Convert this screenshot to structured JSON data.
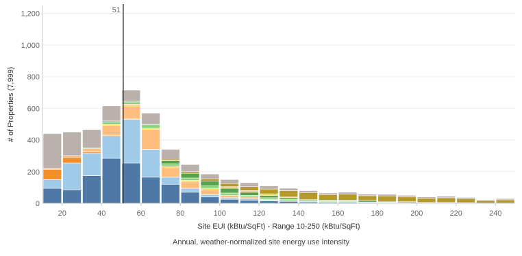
{
  "chart_data": {
    "type": "bar",
    "stacked": true,
    "xlabel": "Site EUI (kBtu/SqFt) - Range 10-250 (kBtu/SqFt)",
    "ylabel": "# of Properties (7,999)",
    "caption": "Annual, weather-normalized site energy use intensity",
    "reference_line": {
      "x": 51,
      "label": "51",
      "color": "#333333"
    },
    "xlim": [
      10,
      250
    ],
    "ylim": [
      0,
      1250
    ],
    "bin_width": 10,
    "x_ticks": [
      20,
      40,
      60,
      80,
      100,
      120,
      140,
      160,
      180,
      200,
      220,
      240
    ],
    "x_tick_labels": [
      "20",
      "40",
      "60",
      "80",
      "100",
      "120",
      "140",
      "160",
      "180",
      "200",
      "220",
      "240"
    ],
    "y_ticks": [
      0,
      200,
      400,
      600,
      800,
      1000,
      1200
    ],
    "y_tick_labels": [
      "0",
      "200",
      "400",
      "600",
      "800",
      "1,000",
      "1,200"
    ],
    "grid": "horizontal",
    "bins": [
      {
        "x": 15,
        "segments": [
          [
            "#4e79a7",
            95
          ],
          [
            "#a0cbe8",
            55
          ],
          [
            "#f28e2b",
            65
          ],
          [
            "#ffbe7d",
            5
          ],
          [
            "#bab0ac",
            220
          ]
        ]
      },
      {
        "x": 25,
        "segments": [
          [
            "#4e79a7",
            85
          ],
          [
            "#a0cbe8",
            170
          ],
          [
            "#f28e2b",
            35
          ],
          [
            "#ffbe7d",
            10
          ],
          [
            "#bab0ac",
            150
          ]
        ]
      },
      {
        "x": 35,
        "segments": [
          [
            "#4e79a7",
            175
          ],
          [
            "#a0cbe8",
            140
          ],
          [
            "#f28e2b",
            10
          ],
          [
            "#ffbe7d",
            20
          ],
          [
            "#8cd17d",
            5
          ],
          [
            "#bab0ac",
            115
          ]
        ]
      },
      {
        "x": 45,
        "segments": [
          [
            "#4e79a7",
            285
          ],
          [
            "#a0cbe8",
            140
          ],
          [
            "#f28e2b",
            5
          ],
          [
            "#ffbe7d",
            60
          ],
          [
            "#f1ce63",
            10
          ],
          [
            "#8cd17d",
            15
          ],
          [
            "#59a14f",
            5
          ],
          [
            "#bab0ac",
            95
          ]
        ]
      },
      {
        "x": 55,
        "segments": [
          [
            "#4e79a7",
            255
          ],
          [
            "#a0cbe8",
            275
          ],
          [
            "#f28e2b",
            5
          ],
          [
            "#ffbe7d",
            80
          ],
          [
            "#f1ce63",
            10
          ],
          [
            "#8cd17d",
            15
          ],
          [
            "#59a14f",
            5
          ],
          [
            "#bab0ac",
            70
          ]
        ]
      },
      {
        "x": 65,
        "segments": [
          [
            "#4e79a7",
            165
          ],
          [
            "#a0cbe8",
            175
          ],
          [
            "#ffbe7d",
            125
          ],
          [
            "#f1ce63",
            10
          ],
          [
            "#8cd17d",
            20
          ],
          [
            "#59a14f",
            5
          ],
          [
            "#bab0ac",
            70
          ]
        ]
      },
      {
        "x": 75,
        "segments": [
          [
            "#4e79a7",
            120
          ],
          [
            "#a0cbe8",
            45
          ],
          [
            "#ffbe7d",
            60
          ],
          [
            "#f1ce63",
            10
          ],
          [
            "#8cd17d",
            15
          ],
          [
            "#59a14f",
            20
          ],
          [
            "#b6992d",
            10
          ],
          [
            "#bab0ac",
            60
          ]
        ]
      },
      {
        "x": 85,
        "segments": [
          [
            "#4e79a7",
            70
          ],
          [
            "#a0cbe8",
            25
          ],
          [
            "#ffbe7d",
            40
          ],
          [
            "#f1ce63",
            10
          ],
          [
            "#8cd17d",
            15
          ],
          [
            "#59a14f",
            30
          ],
          [
            "#b6992d",
            10
          ],
          [
            "#bab0ac",
            45
          ]
        ]
      },
      {
        "x": 95,
        "segments": [
          [
            "#4e79a7",
            40
          ],
          [
            "#a0cbe8",
            15
          ],
          [
            "#ffbe7d",
            30
          ],
          [
            "#f1ce63",
            10
          ],
          [
            "#8cd17d",
            15
          ],
          [
            "#59a14f",
            30
          ],
          [
            "#b6992d",
            15
          ],
          [
            "#bab0ac",
            30
          ]
        ]
      },
      {
        "x": 105,
        "segments": [
          [
            "#4e79a7",
            25
          ],
          [
            "#a0cbe8",
            10
          ],
          [
            "#ffbe7d",
            15
          ],
          [
            "#8cd17d",
            15
          ],
          [
            "#59a14f",
            30
          ],
          [
            "#f1ce63",
            10
          ],
          [
            "#b6992d",
            20
          ],
          [
            "#bab0ac",
            25
          ]
        ]
      },
      {
        "x": 115,
        "segments": [
          [
            "#4e79a7",
            20
          ],
          [
            "#a0cbe8",
            10
          ],
          [
            "#ffbe7d",
            10
          ],
          [
            "#8cd17d",
            10
          ],
          [
            "#59a14f",
            20
          ],
          [
            "#f1ce63",
            10
          ],
          [
            "#b6992d",
            25
          ],
          [
            "#bab0ac",
            25
          ]
        ]
      },
      {
        "x": 125,
        "segments": [
          [
            "#4e79a7",
            15
          ],
          [
            "#a0cbe8",
            5
          ],
          [
            "#ffbe7d",
            5
          ],
          [
            "#8cd17d",
            10
          ],
          [
            "#59a14f",
            15
          ],
          [
            "#f1ce63",
            10
          ],
          [
            "#b6992d",
            30
          ],
          [
            "#bab0ac",
            20
          ]
        ]
      },
      {
        "x": 135,
        "segments": [
          [
            "#4e79a7",
            12
          ],
          [
            "#a0cbe8",
            5
          ],
          [
            "#8cd17d",
            8
          ],
          [
            "#59a14f",
            10
          ],
          [
            "#f1ce63",
            5
          ],
          [
            "#b6992d",
            40
          ],
          [
            "#bab0ac",
            15
          ]
        ]
      },
      {
        "x": 145,
        "segments": [
          [
            "#4e79a7",
            8
          ],
          [
            "#a0cbe8",
            5
          ],
          [
            "#8cd17d",
            5
          ],
          [
            "#59a14f",
            5
          ],
          [
            "#b6992d",
            45
          ],
          [
            "#bab0ac",
            12
          ]
        ]
      },
      {
        "x": 155,
        "segments": [
          [
            "#4e79a7",
            6
          ],
          [
            "#a0cbe8",
            4
          ],
          [
            "#8cd17d",
            5
          ],
          [
            "#59a14f",
            5
          ],
          [
            "#b6992d",
            35
          ],
          [
            "#bab0ac",
            10
          ]
        ]
      },
      {
        "x": 165,
        "segments": [
          [
            "#4e79a7",
            6
          ],
          [
            "#a0cbe8",
            4
          ],
          [
            "#8cd17d",
            5
          ],
          [
            "#59a14f",
            5
          ],
          [
            "#b6992d",
            38
          ],
          [
            "#bab0ac",
            12
          ]
        ]
      },
      {
        "x": 175,
        "segments": [
          [
            "#4e79a7",
            5
          ],
          [
            "#a0cbe8",
            3
          ],
          [
            "#59a14f",
            10
          ],
          [
            "#b6992d",
            30
          ],
          [
            "#bab0ac",
            10
          ]
        ]
      },
      {
        "x": 185,
        "segments": [
          [
            "#4e79a7",
            4
          ],
          [
            "#a0cbe8",
            3
          ],
          [
            "#59a14f",
            5
          ],
          [
            "#b6992d",
            35
          ],
          [
            "#bab0ac",
            10
          ]
        ]
      },
      {
        "x": 195,
        "segments": [
          [
            "#4e79a7",
            3
          ],
          [
            "#a0cbe8",
            2
          ],
          [
            "#59a14f",
            5
          ],
          [
            "#b6992d",
            30
          ],
          [
            "#bab0ac",
            10
          ]
        ]
      },
      {
        "x": 205,
        "segments": [
          [
            "#4e79a7",
            3
          ],
          [
            "#59a14f",
            2
          ],
          [
            "#b6992d",
            28
          ],
          [
            "#bab0ac",
            7
          ]
        ]
      },
      {
        "x": 215,
        "segments": [
          [
            "#4e79a7",
            3
          ],
          [
            "#59a14f",
            2
          ],
          [
            "#b6992d",
            30
          ],
          [
            "#bab0ac",
            10
          ]
        ]
      },
      {
        "x": 225,
        "segments": [
          [
            "#4e79a7",
            2
          ],
          [
            "#59a14f",
            2
          ],
          [
            "#b6992d",
            25
          ],
          [
            "#bab0ac",
            8
          ]
        ]
      },
      {
        "x": 235,
        "segments": [
          [
            "#4e79a7",
            2
          ],
          [
            "#b6992d",
            15
          ],
          [
            "#bab0ac",
            5
          ]
        ]
      },
      {
        "x": 245,
        "segments": [
          [
            "#4e79a7",
            2
          ],
          [
            "#b6992d",
            20
          ],
          [
            "#bab0ac",
            8
          ]
        ]
      }
    ]
  }
}
